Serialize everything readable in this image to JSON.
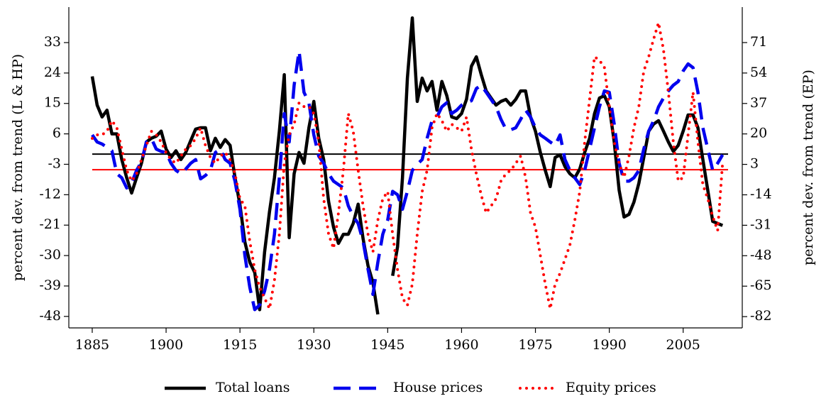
{
  "chart_data": {
    "type": "line",
    "ylabel": "percent dev. from trend (L & HP)",
    "y2label": "percent dev. from trend (EP)",
    "x": [
      1885,
      1886,
      1887,
      1888,
      1889,
      1890,
      1891,
      1892,
      1893,
      1894,
      1895,
      1896,
      1897,
      1898,
      1899,
      1900,
      1901,
      1902,
      1903,
      1904,
      1905,
      1906,
      1907,
      1908,
      1909,
      1910,
      1911,
      1912,
      1913,
      1914,
      1915,
      1916,
      1917,
      1918,
      1919,
      1920,
      1921,
      1922,
      1923,
      1924,
      1925,
      1926,
      1927,
      1928,
      1929,
      1930,
      1931,
      1932,
      1933,
      1934,
      1935,
      1936,
      1937,
      1938,
      1939,
      1940,
      1941,
      1942,
      1943,
      1944,
      1945,
      1946,
      1947,
      1948,
      1949,
      1950,
      1951,
      1952,
      1953,
      1954,
      1955,
      1956,
      1957,
      1958,
      1959,
      1960,
      1961,
      1962,
      1963,
      1964,
      1965,
      1966,
      1967,
      1968,
      1969,
      1970,
      1971,
      1972,
      1973,
      1974,
      1975,
      1976,
      1977,
      1978,
      1979,
      1980,
      1981,
      1982,
      1983,
      1984,
      1985,
      1986,
      1987,
      1988,
      1989,
      1990,
      1991,
      1992,
      1993,
      1994,
      1995,
      1996,
      1997,
      1998,
      1999,
      2000,
      2001,
      2002,
      2003,
      2004,
      2005,
      2006,
      2007,
      2008,
      2009,
      2010,
      2011,
      2012,
      2013
    ],
    "series": [
      {
        "name": "Total loans",
        "color": "#000000",
        "style": "solid",
        "axis": "y",
        "values": [
          23,
          14.5,
          11,
          13,
          6,
          6,
          -1.6,
          -7,
          -11.5,
          -7,
          -2.7,
          3.6,
          4.7,
          5.3,
          6.8,
          1.5,
          -1,
          1,
          -1.6,
          0.5,
          4,
          7.4,
          7.8,
          7.8,
          1,
          4.7,
          2,
          4.3,
          2.6,
          -7,
          -15,
          -26,
          -32,
          -35,
          -46,
          -29,
          -17,
          -7,
          6.8,
          23.5,
          -24.7,
          -5.8,
          0.5,
          -2.7,
          7.8,
          15.6,
          4.7,
          -1.6,
          -14,
          -21.6,
          -26.4,
          -23.7,
          -23.7,
          -20.5,
          -14.8,
          -25,
          -33,
          -38,
          -47.4,
          null,
          null,
          -36,
          -27.4,
          -7,
          22.5,
          40.3,
          15.6,
          22.5,
          18.7,
          21.5,
          13,
          21.5,
          17.3,
          11,
          10.5,
          12,
          16.2,
          26,
          28.8,
          23.5,
          18.7,
          16.6,
          14.5,
          15.6,
          16.2,
          14.5,
          16.2,
          18.7,
          18.7,
          11,
          6.8,
          0.5,
          -4.8,
          -9.6,
          -1,
          -0.2,
          -3.7,
          -5.8,
          -7,
          -4.4,
          0.5,
          4.7,
          12,
          16.6,
          17.3,
          14,
          3.6,
          -10.7,
          -18.6,
          -17.8,
          -14.2,
          -8.6,
          -1,
          6.8,
          8.9,
          9.9,
          6.8,
          3.6,
          0.8,
          2.6,
          6.8,
          11.6,
          11.6,
          7.8,
          -1.6,
          -10.7,
          -19.9,
          -20.5,
          -21.1
        ]
      },
      {
        "name": "House prices",
        "color": "#0000ee",
        "style": "dashed",
        "axis": "y",
        "values": [
          5.7,
          3.6,
          3,
          2,
          1,
          -5.8,
          -7,
          -10,
          -8.5,
          -4.8,
          -2.3,
          3.6,
          4.7,
          1.5,
          0.8,
          0.5,
          -2.7,
          -4.8,
          -5.8,
          -4.4,
          -2.7,
          -1.6,
          -7.3,
          -6.3,
          -4.8,
          0.5,
          1.5,
          -1.6,
          -2.7,
          -8,
          -16.3,
          -30,
          -39.4,
          -46,
          -44.6,
          -40.5,
          -34,
          -23.7,
          -7,
          12,
          3.6,
          20.4,
          30.5,
          18.3,
          15.2,
          5.7,
          -0.6,
          -2.7,
          -5.8,
          -8,
          -9,
          -10,
          -15.3,
          -18.4,
          -20.5,
          -25.8,
          -34,
          -41.5,
          -32,
          -23.7,
          -19.5,
          -11,
          -12,
          -16.3,
          -11,
          -4.8,
          -3,
          -1.6,
          4.7,
          9.9,
          11,
          14,
          15.2,
          12,
          13,
          14.5,
          15.2,
          15.8,
          19.4,
          20.4,
          18.3,
          16.2,
          14,
          10.3,
          7.4,
          7.2,
          7.8,
          10.3,
          13,
          11,
          7.8,
          5.7,
          4.7,
          3.6,
          2.6,
          5.7,
          -1.6,
          -4.8,
          -7,
          -9,
          -4.8,
          1.5,
          7.8,
          14,
          18.7,
          18.3,
          8.9,
          -2.7,
          -8,
          -8,
          -7,
          -4.8,
          1.5,
          6.8,
          9.9,
          14,
          16.6,
          18.7,
          20.4,
          21.5,
          24.6,
          26.7,
          25.6,
          18.3,
          7.8,
          1.5,
          -4.8,
          -2.7,
          -0.2
        ]
      },
      {
        "name": "Equity prices",
        "color": "#ff0000",
        "style": "dotted",
        "axis": "y2",
        "values": [
          17.5,
          19.5,
          19.5,
          21.5,
          27.4,
          23.4,
          11.5,
          -0.3,
          -6.3,
          -2.3,
          5.6,
          13.5,
          21.5,
          19.5,
          15.5,
          9.6,
          5.6,
          3.6,
          7.6,
          11.5,
          13.5,
          17.5,
          23.4,
          13.5,
          6.8,
          3.6,
          7.6,
          9.6,
          5.6,
          -2.3,
          -16.2,
          -20.2,
          -40,
          -55.8,
          -65.7,
          -71.7,
          -77.6,
          -61.8,
          -36,
          3.6,
          19.5,
          25.4,
          37.3,
          35.3,
          35.3,
          31.4,
          15.5,
          -16.2,
          -36,
          -44,
          -24.1,
          -0.3,
          31.4,
          21.5,
          -0.3,
          -20.2,
          -36,
          -45.9,
          -28.1,
          -16.2,
          -12.2,
          -36,
          -55.8,
          -71.7,
          -75.7,
          -63.8,
          -36,
          -12.2,
          -0.3,
          23.4,
          31.4,
          27.4,
          21.5,
          25.4,
          23.4,
          21.5,
          29.4,
          11.5,
          -2.3,
          -14.2,
          -24.1,
          -20.2,
          -16.2,
          -6.3,
          -2.3,
          -0.3,
          3.6,
          7.6,
          -4.3,
          -24.1,
          -32,
          -47.9,
          -63.8,
          -77.6,
          -63.8,
          -57.8,
          -49.9,
          -42,
          -28.1,
          -12.2,
          15.5,
          39.3,
          63.1,
          61.1,
          57.1,
          35.3,
          15.5,
          3.6,
          -4.3,
          7.6,
          23.4,
          35.3,
          55.1,
          63.1,
          73,
          82.1,
          67,
          43.3,
          15.5,
          -6.3,
          -4.3,
          19.5,
          43.3,
          15.5,
          -8.3,
          -16.2,
          -26.1,
          -34,
          3.6
        ]
      }
    ],
    "xlim": [
      1880.25,
      2017
    ],
    "xticks": [
      1885,
      1900,
      1915,
      1930,
      1945,
      1960,
      1975,
      1990,
      2005
    ],
    "ylim": [
      -51.4,
      43.5
    ],
    "yticks": [
      -48,
      -39,
      -30,
      -21,
      -12,
      -3,
      6,
      15,
      24,
      33
    ],
    "y2lim": [
      -88.3,
      90.8
    ],
    "y2ticks": [
      -82,
      -65,
      -48,
      -31,
      -14,
      3,
      20,
      37,
      54,
      71
    ],
    "reference_lines": [
      {
        "axis": "y",
        "value": 0,
        "color": "#000000"
      },
      {
        "axis": "y2",
        "value": 0,
        "color": "#ff0000"
      }
    ],
    "legend": "bottom"
  }
}
